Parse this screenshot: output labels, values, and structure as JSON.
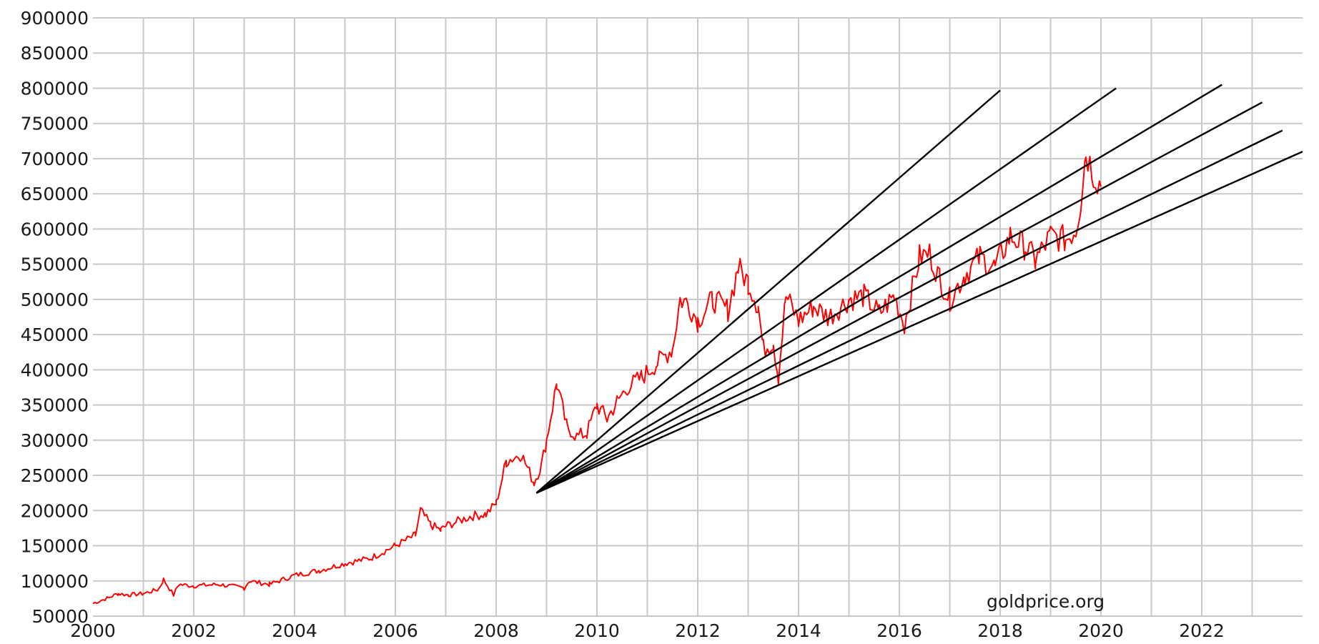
{
  "chart_data": {
    "type": "line",
    "title": "",
    "xlabel": "",
    "ylabel": "",
    "x_range": [
      2000,
      2024.0
    ],
    "ylim": [
      50000,
      900000
    ],
    "x_ticks": [
      2000,
      2002,
      2004,
      2006,
      2008,
      2010,
      2012,
      2014,
      2016,
      2018,
      2020,
      2022
    ],
    "x_tick_labels": [
      "2000",
      "2002",
      "2004",
      "2006",
      "2008",
      "2010",
      "2012",
      "2014",
      "2016",
      "2018",
      "2020",
      "2022"
    ],
    "y_ticks": [
      50000,
      100000,
      150000,
      200000,
      250000,
      300000,
      350000,
      400000,
      450000,
      500000,
      550000,
      600000,
      650000,
      700000,
      750000,
      800000,
      850000,
      900000
    ],
    "y_tick_labels": [
      "50000",
      "100000",
      "150000",
      "200000",
      "250000",
      "300000",
      "350000",
      "400000",
      "450000",
      "500000",
      "550000",
      "600000",
      "650000",
      "700000",
      "750000",
      "800000",
      "850000",
      "900000"
    ],
    "grid": true,
    "watermark": "goldprice.org",
    "colors": {
      "price": "#ff0000",
      "fan": "#000000",
      "grid": "#c9c9c9"
    },
    "series": [
      {
        "kind": "price",
        "x": [
          2000.0,
          2000.3,
          2000.5,
          2000.7,
          2001.0,
          2001.3,
          2001.4,
          2001.6,
          2001.7,
          2002.0,
          2002.5,
          2003.0,
          2003.1,
          2003.5,
          2004.0,
          2004.5,
          2005.0,
          2005.5,
          2006.0,
          2006.4,
          2006.5,
          2006.7,
          2006.9,
          2007.0,
          2007.5,
          2007.8,
          2008.0,
          2008.2,
          2008.5,
          2008.75,
          2008.9,
          2009.0,
          2009.2,
          2009.4,
          2009.6,
          2009.8,
          2010.0,
          2010.2,
          2010.4,
          2010.6,
          2010.9,
          2011.2,
          2011.5,
          2011.65,
          2011.8,
          2012.0,
          2012.3,
          2012.6,
          2012.8,
          2013.0,
          2013.2,
          2013.3,
          2013.5,
          2013.6,
          2013.75,
          2014.0,
          2014.3,
          2014.6,
          2015.0,
          2015.3,
          2015.6,
          2015.9,
          2016.1,
          2016.4,
          2016.6,
          2016.8,
          2017.0,
          2017.3,
          2017.6,
          2017.9,
          2018.2,
          2018.5,
          2018.7,
          2019.0,
          2019.3,
          2019.5,
          2019.6,
          2019.7,
          2019.85,
          2020.0
        ],
        "y": [
          68000,
          76000,
          82000,
          80000,
          82000,
          88000,
          102000,
          80000,
          95000,
          93000,
          95000,
          90000,
          100000,
          95000,
          108000,
          115000,
          125000,
          132000,
          150000,
          165000,
          200000,
          180000,
          172000,
          178000,
          192000,
          195000,
          210000,
          270000,
          280000,
          240000,
          265000,
          300000,
          380000,
          320000,
          305000,
          310000,
          350000,
          330000,
          355000,
          375000,
          390000,
          410000,
          430000,
          500000,
          495000,
          470000,
          500000,
          485000,
          545000,
          525000,
          490000,
          430000,
          440000,
          390000,
          505000,
          470000,
          490000,
          475000,
          500000,
          505000,
          480000,
          505000,
          465000,
          560000,
          565000,
          530000,
          500000,
          535000,
          560000,
          545000,
          590000,
          575000,
          555000,
          590000,
          585000,
          600000,
          640000,
          710000,
          680000,
          660000
        ],
        "sample_every": 0.04
      },
      {
        "kind": "fan",
        "x": [
          2008.8,
          2018.0
        ],
        "y": [
          225000,
          797000
        ]
      },
      {
        "kind": "fan",
        "x": [
          2008.8,
          2020.3
        ],
        "y": [
          225000,
          800000
        ]
      },
      {
        "kind": "fan",
        "x": [
          2008.8,
          2022.4
        ],
        "y": [
          225000,
          805000
        ]
      },
      {
        "kind": "fan",
        "x": [
          2008.8,
          2023.2
        ],
        "y": [
          225000,
          780000
        ]
      },
      {
        "kind": "fan",
        "x": [
          2008.8,
          2023.6
        ],
        "y": [
          225000,
          740000
        ]
      },
      {
        "kind": "fan",
        "x": [
          2008.8,
          2024.0
        ],
        "y": [
          225000,
          710000
        ]
      }
    ]
  }
}
